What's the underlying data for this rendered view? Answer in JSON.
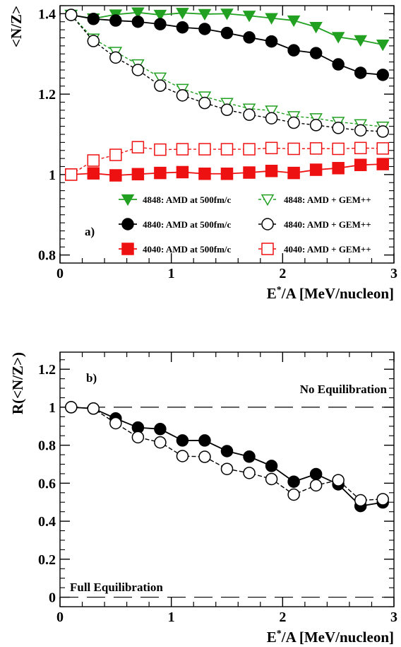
{
  "chart_data": [
    {
      "type": "line",
      "panel_label": "a)",
      "ylabel": "<N/Z>",
      "xlabel_pre": "E",
      "xlabel_sup": "*",
      "xlabel_post": "/A [MeV/nucleon]",
      "xlim": [
        0,
        3
      ],
      "ylim": [
        0.78,
        1.42
      ],
      "xticks": [
        0,
        1,
        2,
        3
      ],
      "xtick_labels": [
        "0",
        "1",
        "2",
        "3"
      ],
      "yticks": [
        0.8,
        1.0,
        1.2,
        1.4
      ],
      "ytick_labels": [
        "0.8",
        "1",
        "1.2",
        "1.4"
      ],
      "grid": false,
      "legend_placement": "bottom-right",
      "x": [
        0.1,
        0.3,
        0.5,
        0.7,
        0.9,
        1.1,
        1.3,
        1.5,
        1.7,
        1.9,
        2.1,
        2.3,
        2.5,
        2.7,
        2.9
      ],
      "series": [
        {
          "name": "4848: AMD at 500fm/c",
          "color": "#22a022",
          "marker": "triangle-down-filled",
          "line": "solid",
          "values": [
            1.397,
            1.388,
            1.398,
            1.403,
            1.397,
            1.402,
            1.399,
            1.4,
            1.395,
            1.389,
            1.383,
            1.367,
            1.342,
            1.334,
            1.323
          ]
        },
        {
          "name": "4848: AMD + GEM++",
          "color": "#22a022",
          "marker": "triangle-down-open",
          "line": "dashed",
          "values": [
            1.397,
            1.338,
            1.305,
            1.274,
            1.241,
            1.213,
            1.194,
            1.178,
            1.164,
            1.159,
            1.145,
            1.14,
            1.131,
            1.125,
            1.119
          ]
        },
        {
          "name": "4840: AMD at 500fm/c",
          "color": "#000000",
          "marker": "circle-filled",
          "line": "solid",
          "values": [
            1.397,
            1.387,
            1.383,
            1.38,
            1.374,
            1.366,
            1.362,
            1.352,
            1.341,
            1.331,
            1.309,
            1.302,
            1.274,
            1.253,
            1.248
          ]
        },
        {
          "name": "4840: AMD + GEM++",
          "color": "#000000",
          "marker": "circle-open",
          "line": "dashed",
          "values": [
            1.397,
            1.332,
            1.291,
            1.26,
            1.221,
            1.197,
            1.178,
            1.161,
            1.149,
            1.14,
            1.129,
            1.123,
            1.116,
            1.11,
            1.107
          ]
        },
        {
          "name": "4040: AMD at 500fm/c",
          "color": "#ee1111",
          "marker": "square-filled",
          "line": "solid",
          "values": [
            1.0,
            1.003,
            0.998,
            1.001,
            1.004,
            1.006,
            1.002,
            1.002,
            1.005,
            1.009,
            1.004,
            1.012,
            1.016,
            1.024,
            1.026
          ]
        },
        {
          "name": "4040: AMD + GEM++",
          "color": "#ee1111",
          "marker": "square-open",
          "line": "dashed",
          "values": [
            1.0,
            1.035,
            1.049,
            1.068,
            1.062,
            1.063,
            1.063,
            1.063,
            1.063,
            1.066,
            1.064,
            1.065,
            1.064,
            1.066,
            1.065
          ]
        }
      ]
    },
    {
      "type": "line",
      "panel_label": "b)",
      "ylabel": "R(<N/Z>)",
      "xlabel_pre": "E",
      "xlabel_sup": "*",
      "xlabel_post": "/A [MeV/nucleon]",
      "xlim": [
        0,
        3
      ],
      "ylim": [
        -0.05,
        1.29
      ],
      "xticks": [
        0,
        1,
        2,
        3
      ],
      "xtick_labels": [
        "0",
        "1",
        "2",
        "3"
      ],
      "yticks": [
        0,
        0.2,
        0.4,
        0.6,
        0.8,
        1.0,
        1.2
      ],
      "ytick_labels": [
        "0",
        "0.2",
        "0.4",
        "0.6",
        "0.8",
        "1",
        "1.2"
      ],
      "grid": false,
      "reference_lines": [
        {
          "y": 1.0,
          "label": "No Equilibration"
        },
        {
          "y": 0.0,
          "label": "Full Equilibration"
        }
      ],
      "x": [
        0.1,
        0.3,
        0.5,
        0.7,
        0.9,
        1.1,
        1.3,
        1.5,
        1.7,
        1.9,
        2.1,
        2.3,
        2.5,
        2.7,
        2.9
      ],
      "series": [
        {
          "color": "#000000",
          "marker": "circle-filled",
          "line": "solid",
          "values": [
            1.0,
            0.993,
            0.941,
            0.893,
            0.885,
            0.825,
            0.825,
            0.769,
            0.74,
            0.691,
            0.608,
            0.648,
            0.594,
            0.48,
            0.499
          ]
        },
        {
          "color": "#000000",
          "marker": "circle-open",
          "line": "dashed",
          "values": [
            1.0,
            0.993,
            0.916,
            0.842,
            0.815,
            0.743,
            0.739,
            0.675,
            0.654,
            0.622,
            0.54,
            0.589,
            0.616,
            0.51,
            0.516
          ]
        }
      ]
    }
  ]
}
